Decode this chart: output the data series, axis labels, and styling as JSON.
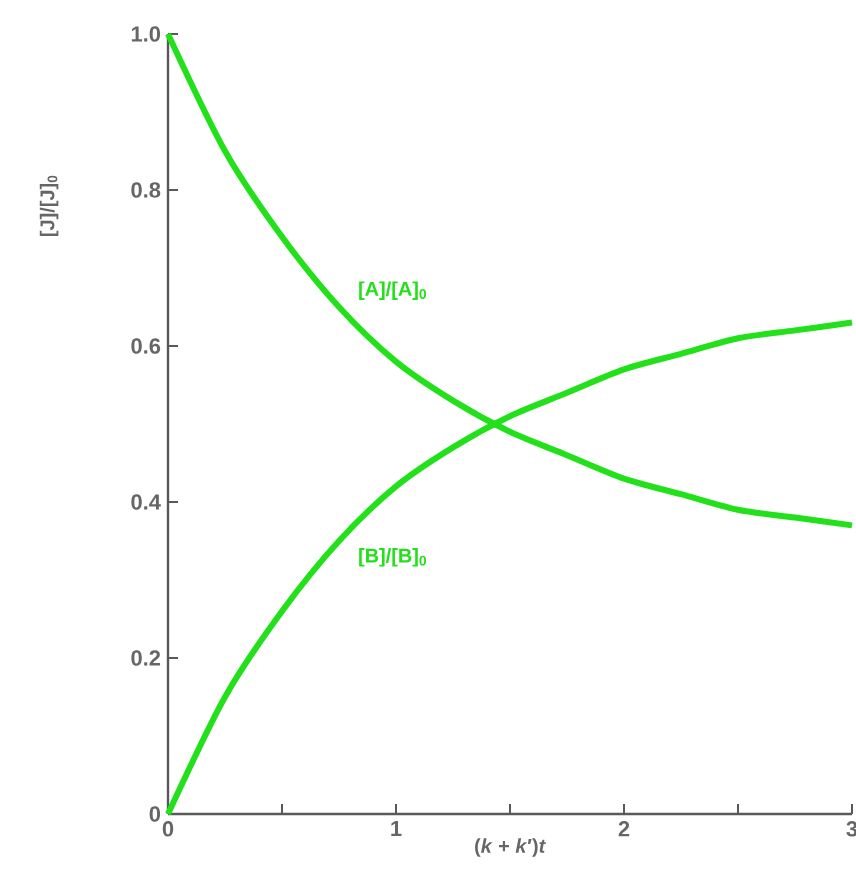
{
  "chart_data": {
    "type": "line",
    "xlabel": "(*k* + *k*′)*t*",
    "ylabel": "[J]/[J]$_{0}$",
    "x": [
      0,
      0.25,
      0.5,
      0.75,
      1,
      1.25,
      1.5,
      1.75,
      2,
      2.25,
      2.5,
      2.75,
      3
    ],
    "series": [
      {
        "name": "[A]/[A]$_{0}$",
        "color": "#22e01a",
        "values": [
          1.0,
          0.85,
          0.74,
          0.65,
          0.58,
          0.53,
          0.49,
          0.46,
          0.43,
          0.41,
          0.39,
          0.38,
          0.37
        ]
      },
      {
        "name": "[B]/[B]$_{0}$",
        "color": "#22e01a",
        "values": [
          0,
          0.15,
          0.26,
          0.35,
          0.42,
          0.47,
          0.51,
          0.54,
          0.57,
          0.59,
          0.61,
          0.62,
          0.63
        ]
      }
    ],
    "xlim": [
      0,
      3
    ],
    "ylim": [
      0,
      1
    ],
    "xticks": [
      0,
      {
        "value": 0.5,
        "label": null
      },
      1,
      {
        "value": 1.5,
        "label": null
      },
      2,
      {
        "value": 2.5,
        "label": null
      },
      3
    ],
    "yticks": [
      0,
      0.2,
      0.4,
      0.6,
      0.8,
      {
        "value": 1,
        "label": "1.0"
      }
    ],
    "grid": false,
    "legend": false,
    "marker": "none",
    "line_style": "solid"
  }
}
